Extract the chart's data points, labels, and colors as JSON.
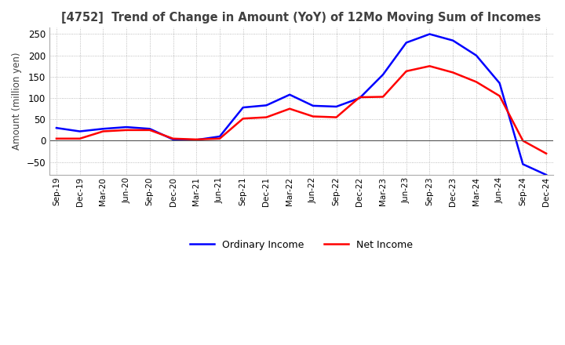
{
  "title": "[4752]  Trend of Change in Amount (YoY) of 12Mo Moving Sum of Incomes",
  "ylabel": "Amount (million yen)",
  "ylim": [
    -80,
    265
  ],
  "yticks": [
    -50,
    0,
    50,
    100,
    150,
    200,
    250
  ],
  "x_labels": [
    "Sep-19",
    "Dec-19",
    "Mar-20",
    "Jun-20",
    "Sep-20",
    "Dec-20",
    "Mar-21",
    "Jun-21",
    "Sep-21",
    "Dec-21",
    "Mar-22",
    "Jun-22",
    "Sep-22",
    "Dec-22",
    "Mar-23",
    "Jun-23",
    "Sep-23",
    "Dec-23",
    "Mar-24",
    "Jun-24",
    "Sep-24",
    "Dec-24"
  ],
  "ordinary_income": [
    30,
    22,
    28,
    32,
    28,
    3,
    2,
    10,
    78,
    83,
    108,
    82,
    80,
    100,
    155,
    230,
    250,
    235,
    200,
    135,
    -55,
    -80
  ],
  "net_income": [
    5,
    5,
    22,
    25,
    25,
    5,
    3,
    5,
    52,
    55,
    75,
    57,
    55,
    102,
    103,
    163,
    175,
    160,
    138,
    105,
    0,
    -30
  ],
  "ordinary_income_color": "#0000ff",
  "net_income_color": "#ff0000",
  "background_color": "#ffffff",
  "grid_color": "#aaaaaa",
  "title_color": "#404040",
  "legend_labels": [
    "Ordinary Income",
    "Net Income"
  ]
}
